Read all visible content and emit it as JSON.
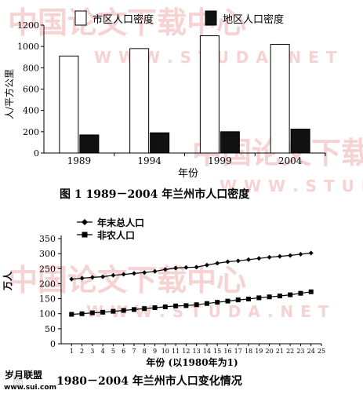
{
  "watermark": {
    "cn": "中国论文下载中心",
    "en": "W W W . S T U D A . N E T",
    "site_badge": "岁月联盟",
    "site_url": "www.sui.com"
  },
  "chart_data": [
    {
      "type": "bar",
      "title": "图 1   1989－2004 年兰州市人口密度",
      "xlabel": "年份",
      "ylabel": "人/平方公里",
      "categories": [
        "1989",
        "1994",
        "1999",
        "2004"
      ],
      "ylim": [
        0,
        1200
      ],
      "yticks": [
        0,
        200,
        400,
        600,
        800,
        1000,
        1200
      ],
      "legend_position": "top",
      "series": [
        {
          "name": "市区人口密度",
          "values": [
            910,
            980,
            1100,
            1020
          ],
          "color": "#ffffff"
        },
        {
          "name": "地区人口密度",
          "values": [
            170,
            190,
            200,
            225
          ],
          "color": "#111111"
        }
      ]
    },
    {
      "type": "line",
      "title": "1980－2004 年兰州市人口变化情况",
      "title_prefix": "图",
      "xlabel": "年份 (以1980年为1)",
      "ylabel": "万人",
      "xlim": [
        0,
        25
      ],
      "ylim": [
        0,
        350
      ],
      "yticks": [
        0,
        50,
        100,
        150,
        200,
        250,
        300,
        350
      ],
      "legend_position": "top-left",
      "x": [
        1,
        2,
        3,
        4,
        5,
        6,
        7,
        8,
        9,
        10,
        11,
        12,
        13,
        14,
        15,
        16,
        17,
        18,
        19,
        20,
        21,
        22,
        23,
        24
      ],
      "series": [
        {
          "name": "年末总人口",
          "marker": "diamond",
          "values": [
            215,
            218,
            221,
            223,
            228,
            231,
            234,
            237,
            241,
            247,
            252,
            254,
            255,
            262,
            268,
            273,
            276,
            280,
            284,
            288,
            291,
            294,
            298,
            302
          ]
        },
        {
          "name": "非农人口",
          "marker": "square",
          "values": [
            98,
            100,
            103,
            105,
            108,
            111,
            114,
            117,
            120,
            123,
            126,
            127,
            130,
            134,
            138,
            142,
            146,
            149,
            153,
            156,
            159,
            163,
            168,
            173
          ]
        }
      ]
    }
  ]
}
